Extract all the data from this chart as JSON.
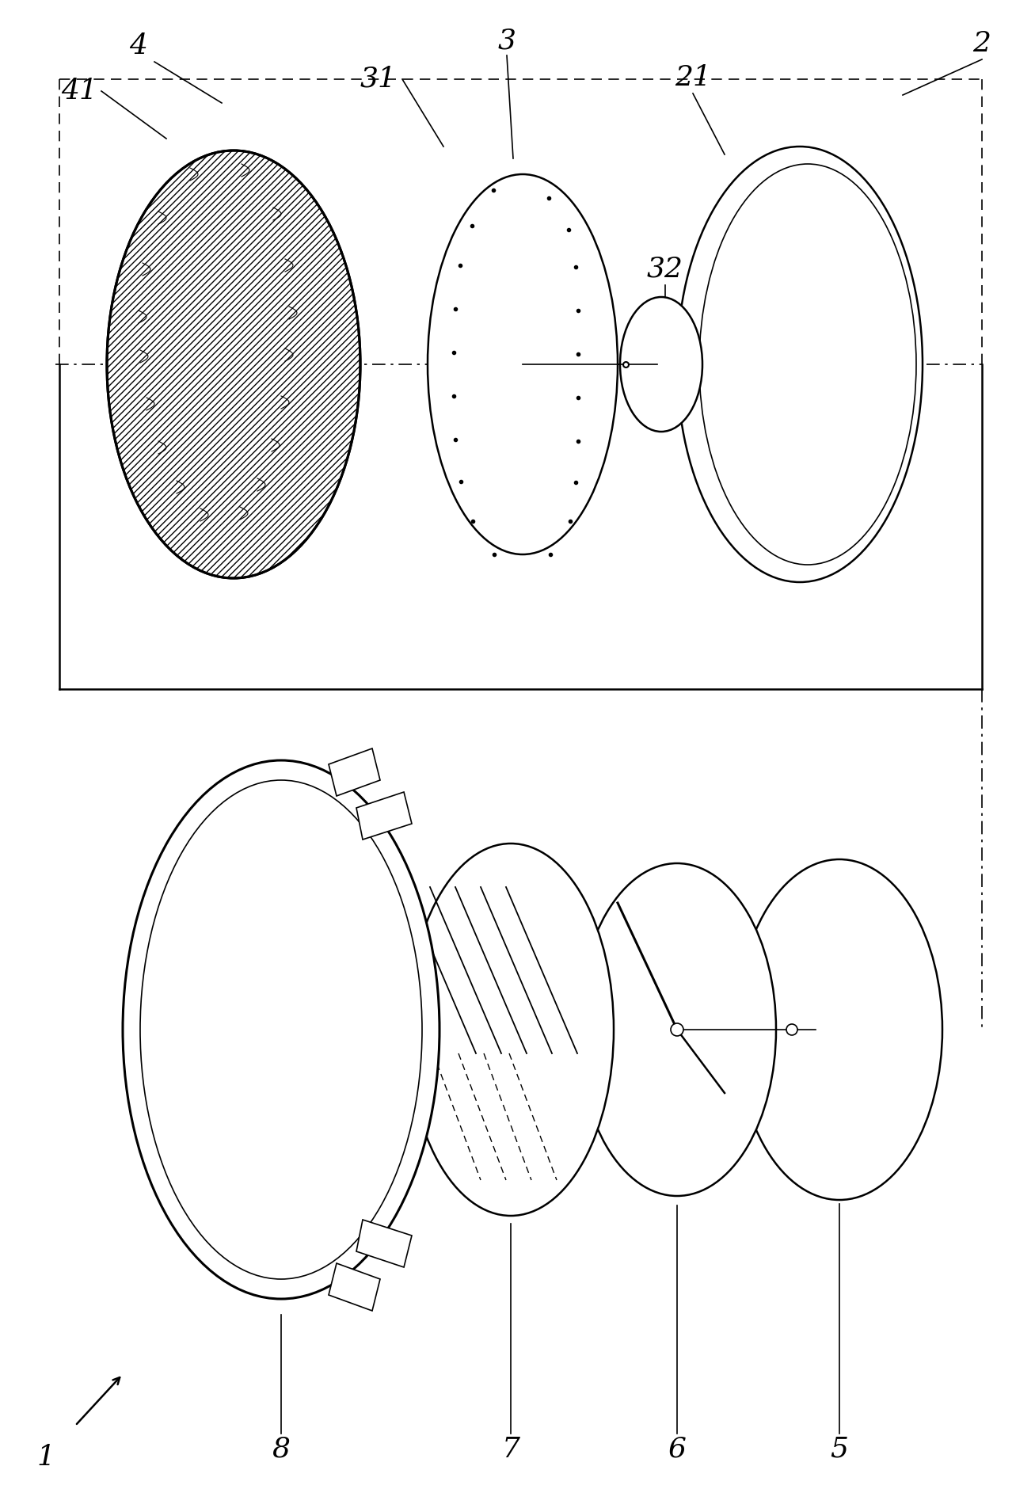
{
  "bg_color": "#ffffff",
  "line_color": "#000000",
  "fig_width": 13.07,
  "fig_height": 19.04,
  "dpi": 100
}
